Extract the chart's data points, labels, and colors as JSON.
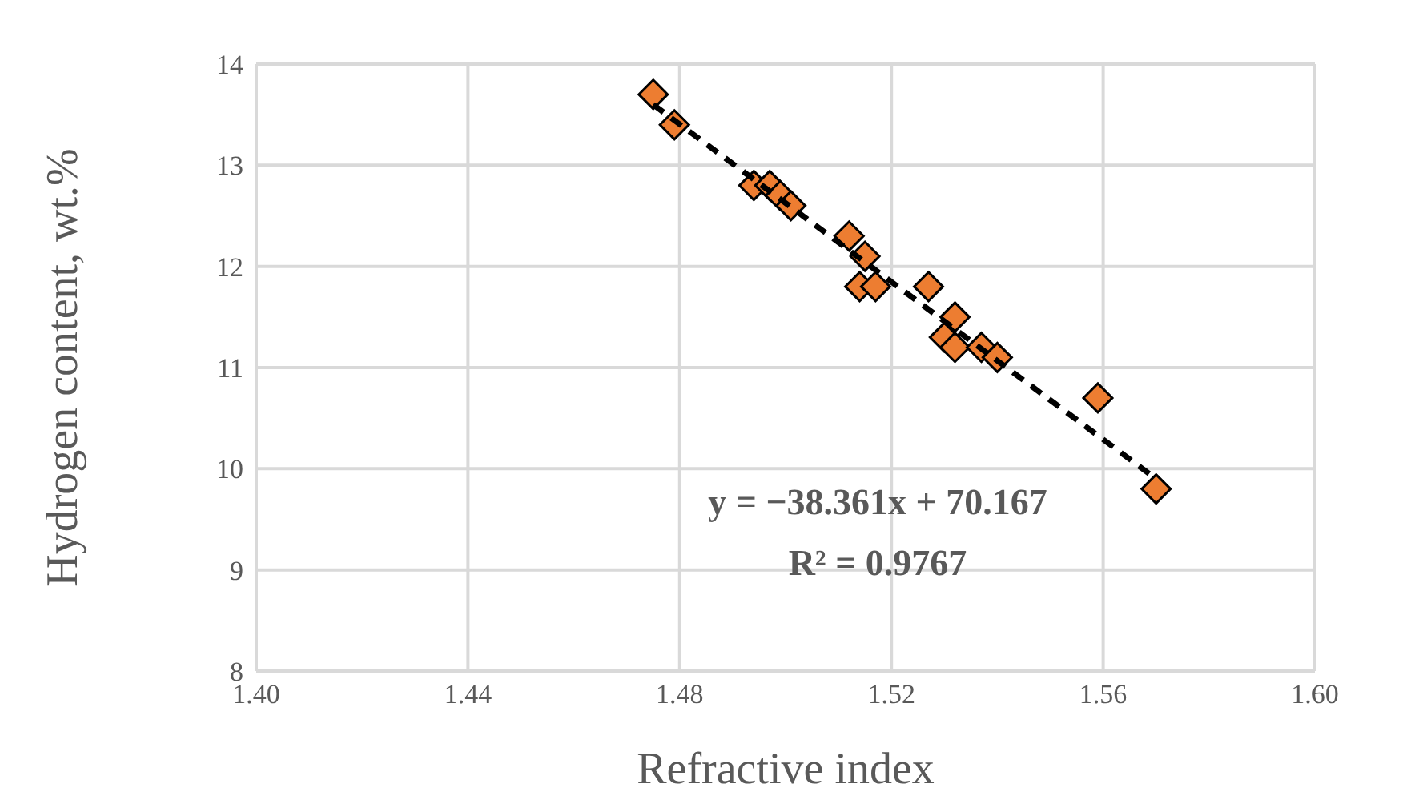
{
  "chart_data": {
    "type": "scatter",
    "xlabel": "Refractive index",
    "ylabel": "Hydrogen content, wt.%",
    "x": [
      1.475,
      1.479,
      1.494,
      1.497,
      1.499,
      1.501,
      1.512,
      1.515,
      1.514,
      1.517,
      1.527,
      1.532,
      1.53,
      1.532,
      1.537,
      1.54,
      1.559,
      1.57
    ],
    "series": [
      {
        "color": "#ed7d31",
        "marker": "diamond",
        "values": [
          13.7,
          13.4,
          12.8,
          12.8,
          12.7,
          12.6,
          12.3,
          12.1,
          11.8,
          11.8,
          11.8,
          11.5,
          11.3,
          11.2,
          11.2,
          11.1,
          10.7,
          9.8
        ]
      },
      {
        "type": "line",
        "color": "#000000",
        "line_style": "dashed",
        "marker": "none",
        "x": [
          1.475,
          1.57
        ],
        "values": [
          13.6,
          9.9
        ]
      }
    ],
    "xlim": [
      1.4,
      1.6
    ],
    "xticks": [
      {
        "value": 1.4,
        "label": "1.40"
      },
      1.44,
      1.48,
      1.52,
      1.56,
      {
        "value": 1.6,
        "label": "1.60"
      }
    ],
    "ylim": [
      8,
      14
    ],
    "yticks": [
      8,
      9,
      10,
      11,
      12,
      13,
      14
    ],
    "grid": true,
    "legend": false,
    "annotations": [
      "y = −38.361x + 70.167",
      "R² = 0.9767"
    ]
  }
}
